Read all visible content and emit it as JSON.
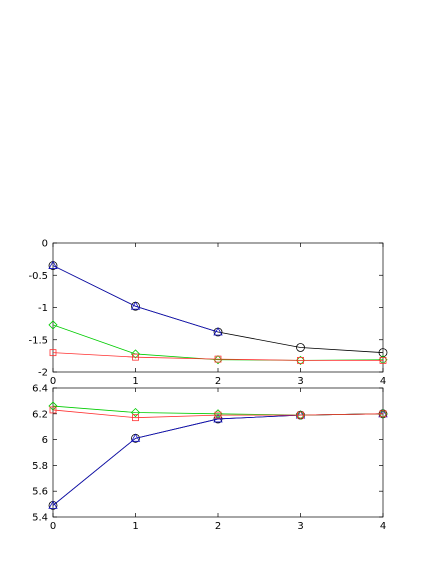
{
  "chart_data": [
    {
      "type": "line",
      "x": [
        0,
        1,
        2,
        3,
        4
      ],
      "xlim": [
        0,
        4
      ],
      "ylim": [
        -2,
        0
      ],
      "x_ticks": [
        "0",
        "1",
        "2",
        "3",
        "4"
      ],
      "y_ticks": [
        "0",
        "-0.5",
        "-1",
        "-1.5",
        "-2"
      ],
      "series": [
        {
          "color": "#000000",
          "marker": "circle",
          "values": [
            -0.35,
            -0.98,
            -1.38,
            -1.62,
            -1.7
          ]
        },
        {
          "color": "#1010c0",
          "marker": "triangle",
          "values": [
            -0.35,
            -0.98,
            -1.38,
            null,
            null
          ]
        },
        {
          "color": "#00cc00",
          "marker": "diamond",
          "values": [
            -1.27,
            -1.72,
            -1.81,
            -1.82,
            -1.81
          ]
        },
        {
          "color": "#ff3030",
          "marker": "square",
          "values": [
            -1.7,
            -1.77,
            -1.8,
            -1.82,
            -1.82
          ]
        }
      ]
    },
    {
      "type": "line",
      "x": [
        0,
        1,
        2,
        3,
        4
      ],
      "xlim": [
        0,
        4
      ],
      "ylim": [
        5.4,
        6.4
      ],
      "x_ticks": [
        "0",
        "1",
        "2",
        "3",
        "4"
      ],
      "y_ticks": [
        "6.4",
        "6.2",
        "6",
        "5.8",
        "5.6",
        "5.4"
      ],
      "series": [
        {
          "color": "#000000",
          "marker": "circle",
          "values": [
            5.49,
            6.01,
            6.16,
            6.19,
            6.2
          ]
        },
        {
          "color": "#1010c0",
          "marker": "triangle",
          "values": [
            5.49,
            6.01,
            6.16,
            6.19,
            6.2
          ]
        },
        {
          "color": "#00cc00",
          "marker": "diamond",
          "values": [
            6.26,
            6.21,
            6.2,
            6.19,
            6.2
          ]
        },
        {
          "color": "#ff3030",
          "marker": "square",
          "values": [
            6.23,
            6.17,
            6.19,
            6.19,
            6.2
          ]
        }
      ]
    }
  ]
}
